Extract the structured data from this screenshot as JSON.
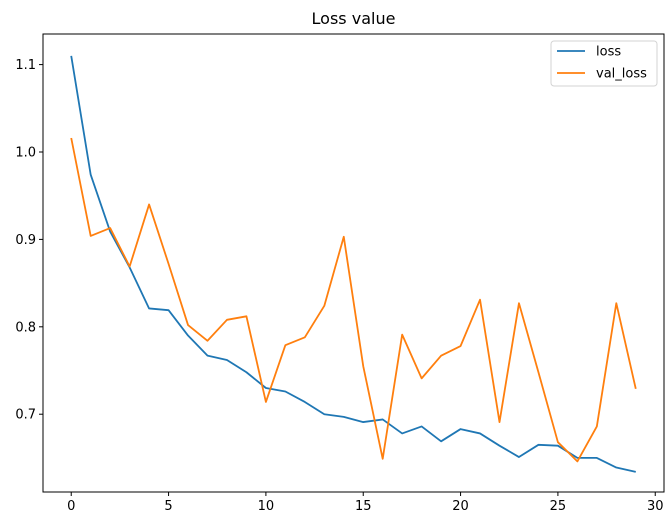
{
  "chart_data": {
    "type": "line",
    "title": "Loss value",
    "xlabel": "",
    "ylabel": "",
    "xlim": [
      -1.45,
      30.45
    ],
    "ylim": [
      0.611,
      1.135
    ],
    "xticks": [
      0,
      5,
      10,
      15,
      20,
      25,
      30
    ],
    "yticks": [
      0.7,
      0.8,
      0.9,
      1.0,
      1.1
    ],
    "ytick_labels": [
      "0.7",
      "0.8",
      "0.9",
      "1.0",
      "1.1"
    ],
    "grid": false,
    "legend_position": "top-right",
    "x": [
      0,
      1,
      2,
      3,
      4,
      5,
      6,
      7,
      8,
      9,
      10,
      11,
      12,
      13,
      14,
      15,
      16,
      17,
      18,
      19,
      20,
      21,
      22,
      23,
      24,
      25,
      26,
      27,
      28,
      29
    ],
    "series": [
      {
        "name": "loss",
        "color": "#1f77b4",
        "values": [
          1.11,
          0.974,
          0.909,
          0.868,
          0.821,
          0.819,
          0.79,
          0.767,
          0.762,
          0.748,
          0.73,
          0.726,
          0.714,
          0.7,
          0.697,
          0.691,
          0.694,
          0.678,
          0.686,
          0.669,
          0.683,
          0.678,
          0.664,
          0.651,
          0.665,
          0.664,
          0.65,
          0.65,
          0.639,
          0.634
        ]
      },
      {
        "name": "val_loss",
        "color": "#ff7f0e",
        "values": [
          1.016,
          0.904,
          0.913,
          0.869,
          0.94,
          0.872,
          0.802,
          0.784,
          0.808,
          0.812,
          0.714,
          0.779,
          0.788,
          0.824,
          0.903,
          0.755,
          0.649,
          0.791,
          0.741,
          0.767,
          0.778,
          0.831,
          0.691,
          0.827,
          0.748,
          0.668,
          0.646,
          0.686,
          0.827,
          0.729
        ]
      }
    ]
  }
}
